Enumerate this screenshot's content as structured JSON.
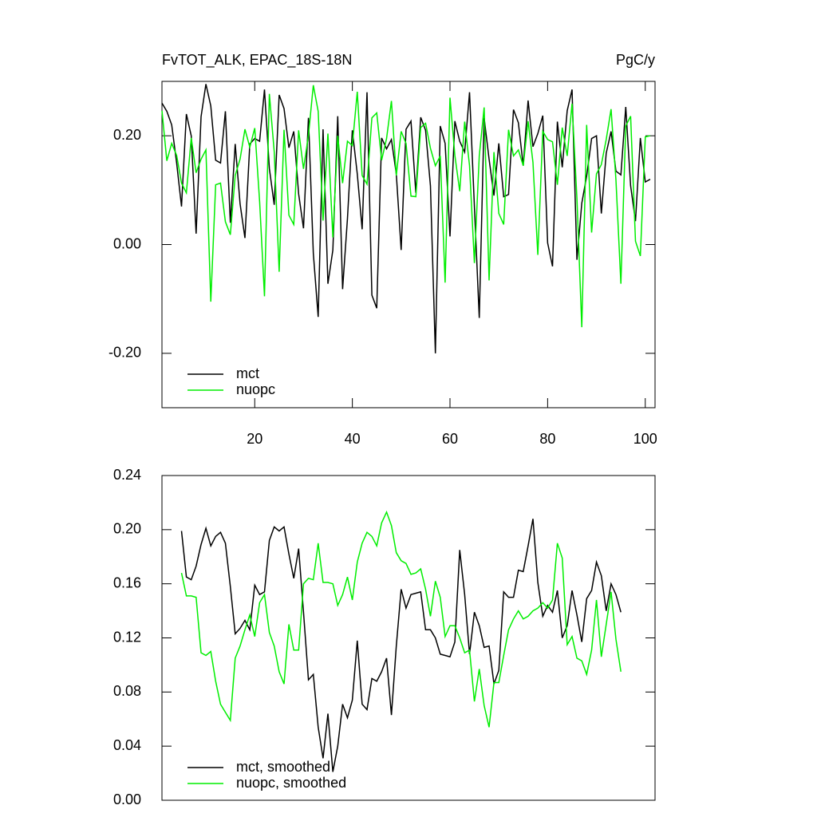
{
  "chart_data": [
    {
      "type": "line",
      "title": "FvTOT_ALK, EPAC_18S-18N",
      "right_title": "PgC/y",
      "x": [
        1,
        2,
        3,
        4,
        5,
        6,
        7,
        8,
        9,
        10,
        11,
        12,
        13,
        14,
        15,
        16,
        17,
        18,
        19,
        20,
        21,
        22,
        23,
        24,
        25,
        26,
        27,
        28,
        29,
        30,
        31,
        32,
        33,
        34,
        35,
        36,
        37,
        38,
        39,
        40,
        41,
        42,
        43,
        44,
        45,
        46,
        47,
        48,
        49,
        50,
        51,
        52,
        53,
        54,
        55,
        56,
        57,
        58,
        59,
        60,
        61,
        62,
        63,
        64,
        65,
        66,
        67,
        68,
        69,
        70,
        71,
        72,
        73,
        74,
        75,
        76,
        77,
        78,
        79,
        80,
        81,
        82,
        83,
        84,
        85,
        86,
        87,
        88,
        89,
        90,
        91,
        92,
        93,
        94,
        95,
        96,
        97,
        98,
        99,
        100,
        101
      ],
      "series": [
        {
          "name": "mct",
          "color": "#000000",
          "values": [
            0.26,
            0.245,
            0.22,
            0.15,
            0.07,
            0.24,
            0.2,
            0.02,
            0.235,
            0.295,
            0.255,
            0.155,
            0.15,
            0.245,
            0.04,
            0.185,
            0.075,
            0.012,
            0.185,
            0.195,
            0.19,
            0.285,
            0.14,
            0.073,
            0.275,
            0.25,
            0.178,
            0.208,
            0.093,
            0.03,
            0.233,
            -0.016,
            -0.133,
            0.212,
            -0.072,
            -0.01,
            0.236,
            -0.082,
            0.048,
            0.21,
            0.13,
            0.028,
            0.28,
            -0.093,
            -0.117,
            0.196,
            0.176,
            0.193,
            0.13,
            -0.01,
            0.212,
            0.227,
            0.095,
            0.234,
            0.21,
            0.108,
            -0.2,
            0.218,
            0.186,
            0.015,
            0.227,
            0.19,
            0.17,
            0.28,
            0.07,
            -0.135,
            0.233,
            0.157,
            0.09,
            0.186,
            0.088,
            0.092,
            0.248,
            0.224,
            0.145,
            0.265,
            0.18,
            0.204,
            0.237,
            0.003,
            -0.04,
            0.226,
            0.142,
            0.246,
            0.285,
            -0.028,
            0.076,
            0.126,
            0.195,
            0.2,
            0.057,
            0.168,
            0.208,
            0.135,
            0.128,
            0.253,
            0.108,
            0.043,
            0.196,
            0.115,
            0.12
          ]
        },
        {
          "name": "nuopc",
          "color": "#00ee00",
          "values": [
            0.246,
            0.154,
            0.186,
            0.164,
            0.113,
            0.095,
            0.196,
            0.132,
            0.157,
            0.174,
            -0.105,
            0.11,
            0.113,
            0.042,
            0.018,
            0.127,
            0.157,
            0.212,
            0.179,
            0.214,
            0.079,
            -0.095,
            0.277,
            0.171,
            -0.05,
            0.211,
            0.054,
            0.037,
            0.21,
            0.139,
            0.201,
            0.293,
            0.245,
            0.044,
            0.204,
            0.013,
            0.2,
            0.113,
            0.19,
            0.182,
            0.281,
            0.127,
            0.111,
            0.233,
            0.242,
            0.155,
            0.195,
            0.264,
            0.127,
            0.208,
            0.186,
            0.089,
            0.088,
            0.215,
            0.223,
            0.177,
            0.145,
            0.163,
            -0.07,
            0.27,
            0.164,
            0.098,
            0.226,
            0.145,
            -0.034,
            0.163,
            0.252,
            -0.066,
            0.17,
            0.057,
            0.037,
            0.211,
            0.163,
            0.174,
            0.145,
            0.227,
            0.151,
            -0.019,
            0.208,
            0.193,
            0.189,
            0.11,
            0.215,
            0.163,
            0.259,
            0.085,
            -0.152,
            0.22,
            0.022,
            0.13,
            0.147,
            0.193,
            0.249,
            0.119,
            -0.072,
            0.218,
            0.236,
            0.006,
            -0.021,
            0.198,
            0.2
          ]
        }
      ],
      "xlim": [
        1,
        102
      ],
      "xticks": [
        20,
        40,
        60,
        80,
        100
      ],
      "ylim": [
        -0.3,
        0.3
      ],
      "yticks": [
        {
          "value": -0.2,
          "label": "-0.20"
        },
        {
          "value": 0,
          "label": "0.00"
        },
        {
          "value": 0.2,
          "label": "0.20"
        }
      ]
    },
    {
      "type": "line",
      "x": [
        5,
        6,
        7,
        8,
        9,
        10,
        11,
        12,
        13,
        14,
        15,
        16,
        17,
        18,
        19,
        20,
        21,
        22,
        23,
        24,
        25,
        26,
        27,
        28,
        29,
        30,
        31,
        32,
        33,
        34,
        35,
        36,
        37,
        38,
        39,
        40,
        41,
        42,
        43,
        44,
        45,
        46,
        47,
        48,
        49,
        50,
        51,
        52,
        53,
        54,
        55,
        56,
        57,
        58,
        59,
        60,
        61,
        62,
        63,
        64,
        65,
        66,
        67,
        68,
        69,
        70,
        71,
        72,
        73,
        74,
        75,
        76,
        77,
        78,
        79,
        80,
        81,
        82,
        83,
        84,
        85,
        86,
        87,
        88,
        89,
        90,
        91,
        92,
        93,
        94,
        95
      ],
      "series": [
        {
          "name": "mct, smoothed",
          "color": "#000000",
          "values": [
            0.199,
            0.165,
            0.163,
            0.173,
            0.189,
            0.201,
            0.188,
            0.195,
            0.198,
            0.19,
            0.158,
            0.123,
            0.127,
            0.133,
            0.126,
            0.159,
            0.152,
            0.154,
            0.192,
            0.202,
            0.199,
            0.202,
            0.182,
            0.164,
            0.186,
            0.139,
            0.089,
            0.093,
            0.054,
            0.031,
            0.064,
            0.021,
            0.04,
            0.071,
            0.061,
            0.074,
            0.118,
            0.071,
            0.067,
            0.09,
            0.088,
            0.095,
            0.105,
            0.063,
            0.114,
            0.156,
            0.142,
            0.152,
            0.153,
            0.154,
            0.126,
            0.126,
            0.12,
            0.108,
            0.107,
            0.106,
            0.117,
            0.185,
            0.152,
            0.108,
            0.139,
            0.129,
            0.113,
            0.114,
            0.086,
            0.096,
            0.154,
            0.15,
            0.15,
            0.17,
            0.169,
            0.188,
            0.208,
            0.161,
            0.136,
            0.144,
            0.139,
            0.155,
            0.12,
            0.129,
            0.155,
            0.137,
            0.117,
            0.149,
            0.155,
            0.176,
            0.166,
            0.14,
            0.16,
            0.152,
            0.139
          ]
        },
        {
          "name": "nuopc, smoothed",
          "color": "#00ee00",
          "values": [
            0.168,
            0.151,
            0.151,
            0.15,
            0.109,
            0.107,
            0.11,
            0.088,
            0.071,
            0.065,
            0.059,
            0.105,
            0.114,
            0.126,
            0.137,
            0.121,
            0.146,
            0.152,
            0.124,
            0.114,
            0.095,
            0.086,
            0.13,
            0.111,
            0.111,
            0.16,
            0.164,
            0.163,
            0.19,
            0.161,
            0.161,
            0.16,
            0.144,
            0.152,
            0.165,
            0.148,
            0.176,
            0.19,
            0.198,
            0.195,
            0.188,
            0.205,
            0.213,
            0.203,
            0.183,
            0.177,
            0.175,
            0.167,
            0.168,
            0.171,
            0.156,
            0.136,
            0.162,
            0.15,
            0.121,
            0.129,
            0.129,
            0.12,
            0.109,
            0.111,
            0.073,
            0.097,
            0.07,
            0.054,
            0.087,
            0.087,
            0.107,
            0.126,
            0.134,
            0.14,
            0.134,
            0.136,
            0.14,
            0.142,
            0.146,
            0.142,
            0.148,
            0.19,
            0.179,
            0.115,
            0.121,
            0.105,
            0.103,
            0.093,
            0.111,
            0.148,
            0.106,
            0.13,
            0.154,
            0.119,
            0.095
          ]
        }
      ],
      "xlim": [
        1,
        102
      ],
      "ylim": [
        0,
        0.24
      ],
      "yticks": [
        {
          "value": 0,
          "label": "0.00"
        },
        {
          "value": 0.04,
          "label": "0.04"
        },
        {
          "value": 0.08,
          "label": "0.08"
        },
        {
          "value": 0.12,
          "label": "0.12"
        },
        {
          "value": 0.16,
          "label": "0.16"
        },
        {
          "value": 0.2,
          "label": "0.20"
        },
        {
          "value": 0.24,
          "label": "0.24"
        }
      ]
    }
  ]
}
